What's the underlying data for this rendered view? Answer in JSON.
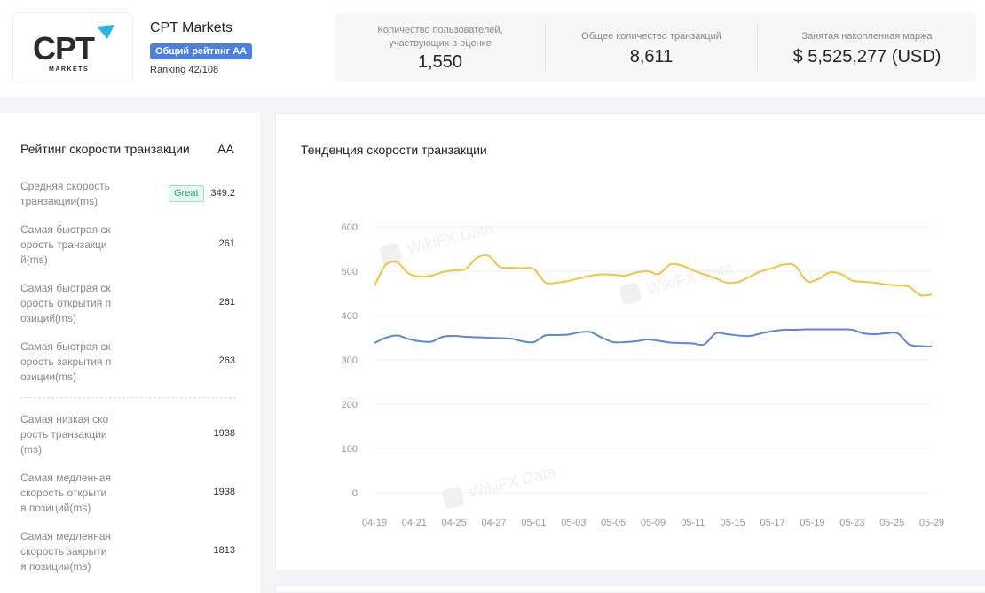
{
  "broker": {
    "name": "CPT Markets",
    "logo_text": "CPT",
    "logo_subtext": "MARKETS",
    "rating_badge": "Общий рейтинг AA",
    "ranking": "Ranking 42/108"
  },
  "stats": [
    {
      "label_line1": "Количество пользователей,",
      "label_line2": "участвующих в оценке",
      "value": "1,550"
    },
    {
      "label_line1": "Общее количество транзакций",
      "label_line2": "",
      "value": "8,611"
    },
    {
      "label_line1": "Занятая накопленная маржа",
      "label_line2": "",
      "value": "$ 5,525,277 (USD)"
    }
  ],
  "speed_rating": {
    "title": "Рейтинг скорости транзакции",
    "grade": "AA",
    "great_label": "Great",
    "metrics": [
      {
        "lines": [
          "Средняя скорость",
          "транзакции(ms)"
        ],
        "value": "349.2"
      },
      {
        "lines": [
          "Самая быстрая ск",
          "орость транзакци",
          "й(ms)"
        ],
        "value": "261"
      },
      {
        "lines": [
          "Самая быстрая ск",
          "орость открытия п",
          "озиций(ms)"
        ],
        "value": "261"
      },
      {
        "lines": [
          "Самая быстрая ск",
          "орость закрытия п",
          "озиции(ms)"
        ],
        "value": "263"
      },
      {
        "lines": [
          "Самая низкая ско",
          "рость транзакции",
          "(ms)"
        ],
        "value": "1938"
      },
      {
        "lines": [
          "Самая медленная",
          "скорость открыти",
          "я позиций(ms)"
        ],
        "value": "1938"
      },
      {
        "lines": [
          "Самая медленная",
          "скорость закрыти",
          "я позиции(ms)"
        ],
        "value": "1813"
      }
    ]
  },
  "trend": {
    "title": "Тенденция скорости транзакции",
    "watermark": "WikiFX Data"
  },
  "chart_data": {
    "type": "line",
    "title": "Тенденция скорости транзакции",
    "ylim": [
      0,
      600
    ],
    "yticks": [
      0,
      100,
      200,
      300,
      400,
      500,
      600
    ],
    "grid": true,
    "x_tick_labels": [
      "04-19",
      "04-21",
      "04-25",
      "04-27",
      "05-01",
      "05-03",
      "05-05",
      "05-09",
      "05-11",
      "05-15",
      "05-17",
      "05-19",
      "05-23",
      "05-25",
      "05-29"
    ],
    "series": [
      {
        "color": "#f5c242",
        "values": [
          467,
          515,
          520,
          495,
          488,
          490,
          498,
          502,
          505,
          530,
          535,
          510,
          508,
          507,
          505,
          475,
          474,
          478,
          484,
          490,
          493,
          492,
          490,
          497,
          500,
          494,
          515,
          513,
          502,
          493,
          484,
          474,
          476,
          488,
          500,
          507,
          515,
          512,
          478,
          482,
          497,
          494,
          479,
          476,
          474,
          470,
          468,
          465,
          446,
          448
        ]
      },
      {
        "color": "#5a87d6",
        "values": [
          338,
          350,
          355,
          347,
          342,
          341,
          352,
          354,
          352,
          351,
          350,
          349,
          348,
          342,
          340,
          355,
          356,
          357,
          362,
          363,
          350,
          340,
          340,
          342,
          346,
          343,
          339,
          338,
          337,
          335,
          360,
          358,
          355,
          354,
          360,
          365,
          368,
          368,
          369,
          369,
          369,
          369,
          368,
          360,
          358,
          360,
          360,
          335,
          331,
          330
        ]
      }
    ]
  },
  "colors": {
    "accent": "#4b7fe3",
    "series_yellow": "#f5c242",
    "series_blue": "#5a87d6",
    "great_green": "#27a17a"
  }
}
